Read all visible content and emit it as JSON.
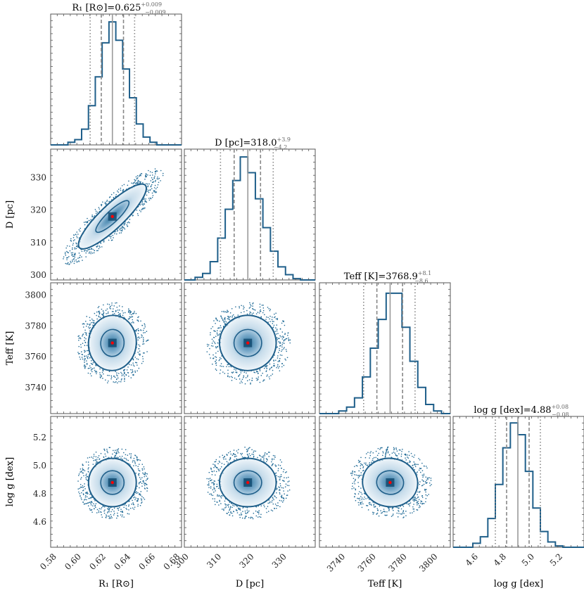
{
  "chart_data": {
    "type": "corner",
    "parameters": [
      {
        "key": "R1",
        "label": "R₁ [R⊙]",
        "title_label": "R₁ [R⊙]",
        "median": 0.625,
        "plus": 0.009,
        "minus": 0.009,
        "title_text": "0.625",
        "title_plus": "+0.009",
        "title_minus": "−0.009",
        "range": [
          0.575,
          0.681
        ],
        "ticks": [
          0.58,
          0.6,
          0.62,
          0.64,
          0.66,
          0.68
        ],
        "tick_labels": [
          "0.58",
          "0.60",
          "0.62",
          "0.64",
          "0.66",
          "0.68"
        ],
        "hist_heights": [
          0.02,
          0.04,
          0.12,
          0.3,
          0.52,
          0.78,
          0.94,
          0.8,
          0.58,
          0.36,
          0.16,
          0.06,
          0.02
        ]
      },
      {
        "key": "D",
        "label": "D [pc]",
        "title_label": "D [pc]",
        "median": 318.0,
        "plus": 3.9,
        "minus": 4.2,
        "title_text": "318.0",
        "title_plus": "+3.9",
        "title_minus": "−4.2",
        "range": [
          298.5,
          338.7
        ],
        "ticks": [
          300,
          310,
          320,
          330
        ],
        "tick_labels": [
          "300",
          "310",
          "320",
          "330"
        ],
        "hist_heights": [
          0.02,
          0.05,
          0.14,
          0.32,
          0.54,
          0.76,
          0.94,
          0.82,
          0.62,
          0.4,
          0.22,
          0.1,
          0.04,
          0.01
        ]
      },
      {
        "key": "Teff",
        "label": "Teff [K]",
        "title_label": "Teff [K]",
        "median": 3768.9,
        "plus": 8.1,
        "minus": 8.6,
        "title_text": "3768.9",
        "title_plus": "+8.1",
        "title_minus": "−8.6",
        "range": [
          3723,
          3808
        ],
        "ticks": [
          3740,
          3760,
          3780,
          3800
        ],
        "tick_labels": [
          "3740",
          "3760",
          "3780",
          "3800"
        ],
        "hist_heights": [
          0.02,
          0.05,
          0.12,
          0.28,
          0.5,
          0.72,
          0.92,
          0.92,
          0.66,
          0.4,
          0.2,
          0.07,
          0.02
        ]
      },
      {
        "key": "logg",
        "label": "log g [dex]",
        "title_label": "log g [dex]",
        "median": 4.88,
        "plus": 0.08,
        "minus": 0.08,
        "title_text": "4.88",
        "title_plus": "+0.08",
        "title_minus": "−0.08",
        "range": [
          4.42,
          5.35
        ],
        "ticks": [
          4.6,
          4.8,
          5.0,
          5.2
        ],
        "tick_labels": [
          "4.6",
          "4.8",
          "5.0",
          "5.2"
        ],
        "hist_heights": [
          0.03,
          0.08,
          0.22,
          0.48,
          0.76,
          0.95,
          0.86,
          0.58,
          0.3,
          0.12,
          0.04,
          0.01
        ]
      }
    ],
    "correlations": {
      "1-0": 0.8,
      "2-0": -0.2,
      "2-1": -0.05,
      "3-0": 0.0,
      "3-1": 0.0,
      "3-2": -0.35
    },
    "colors": {
      "hist": "#1f5f8a",
      "density": "#1f6a96",
      "contour": "#1f5f8a",
      "quantile": "#888888",
      "median_line": "#9a9a9a",
      "truth_point": "#ff0000"
    }
  }
}
